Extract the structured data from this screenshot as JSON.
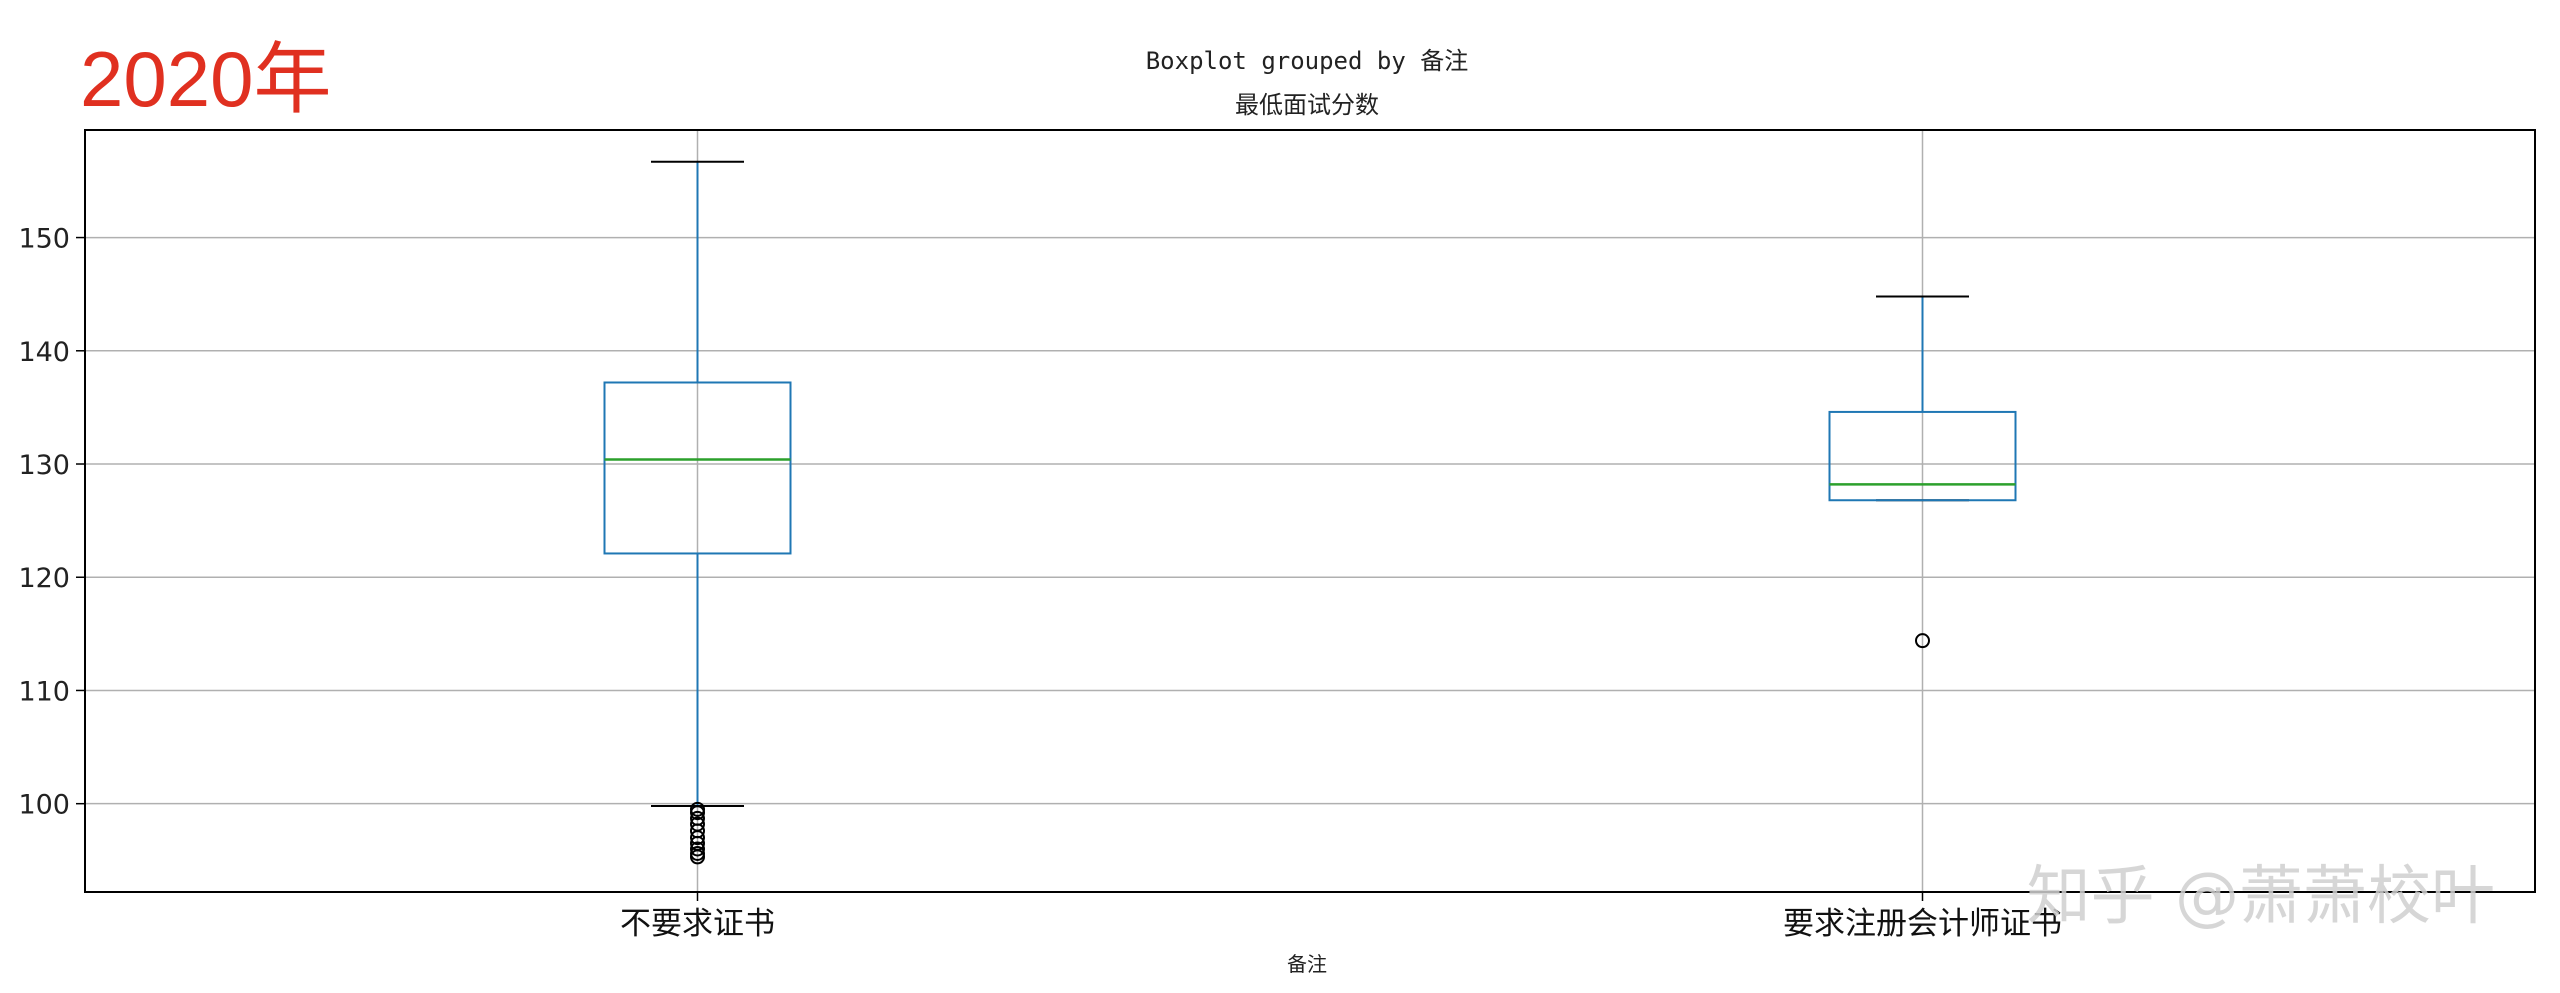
{
  "year_label": "2020年",
  "watermark": "知乎 @萧萧校叶",
  "chart_data": {
    "type": "box",
    "title": "Boxplot grouped by 备注",
    "subtitle": "最低面试分数",
    "xlabel": "备注",
    "ylim": [
      92.2,
      159.5
    ],
    "yticks": [
      100,
      110,
      120,
      130,
      140,
      150
    ],
    "grid": true,
    "colors": {
      "box": "#1f77b4",
      "median": "#2ca02c",
      "whisker": "#1f77b4",
      "cap": "#000000",
      "flier": "#000000",
      "grid": "#b0b0b0"
    },
    "categories": [
      "不要求证书",
      "要求注册会计师证书"
    ],
    "boxes": [
      {
        "category": "不要求证书",
        "whislo": 99.8,
        "q1": 122.1,
        "med": 130.4,
        "q3": 137.2,
        "whishi": 156.7,
        "fliers": [
          95.3,
          95.6,
          96.0,
          96.5,
          97.0,
          97.6,
          98.2,
          98.7,
          99.2,
          99.5
        ]
      },
      {
        "category": "要求注册会计师证书",
        "whislo": 126.8,
        "q1": 126.8,
        "med": 128.2,
        "q3": 134.6,
        "whishi": 144.8,
        "fliers": [
          114.4
        ]
      }
    ]
  }
}
